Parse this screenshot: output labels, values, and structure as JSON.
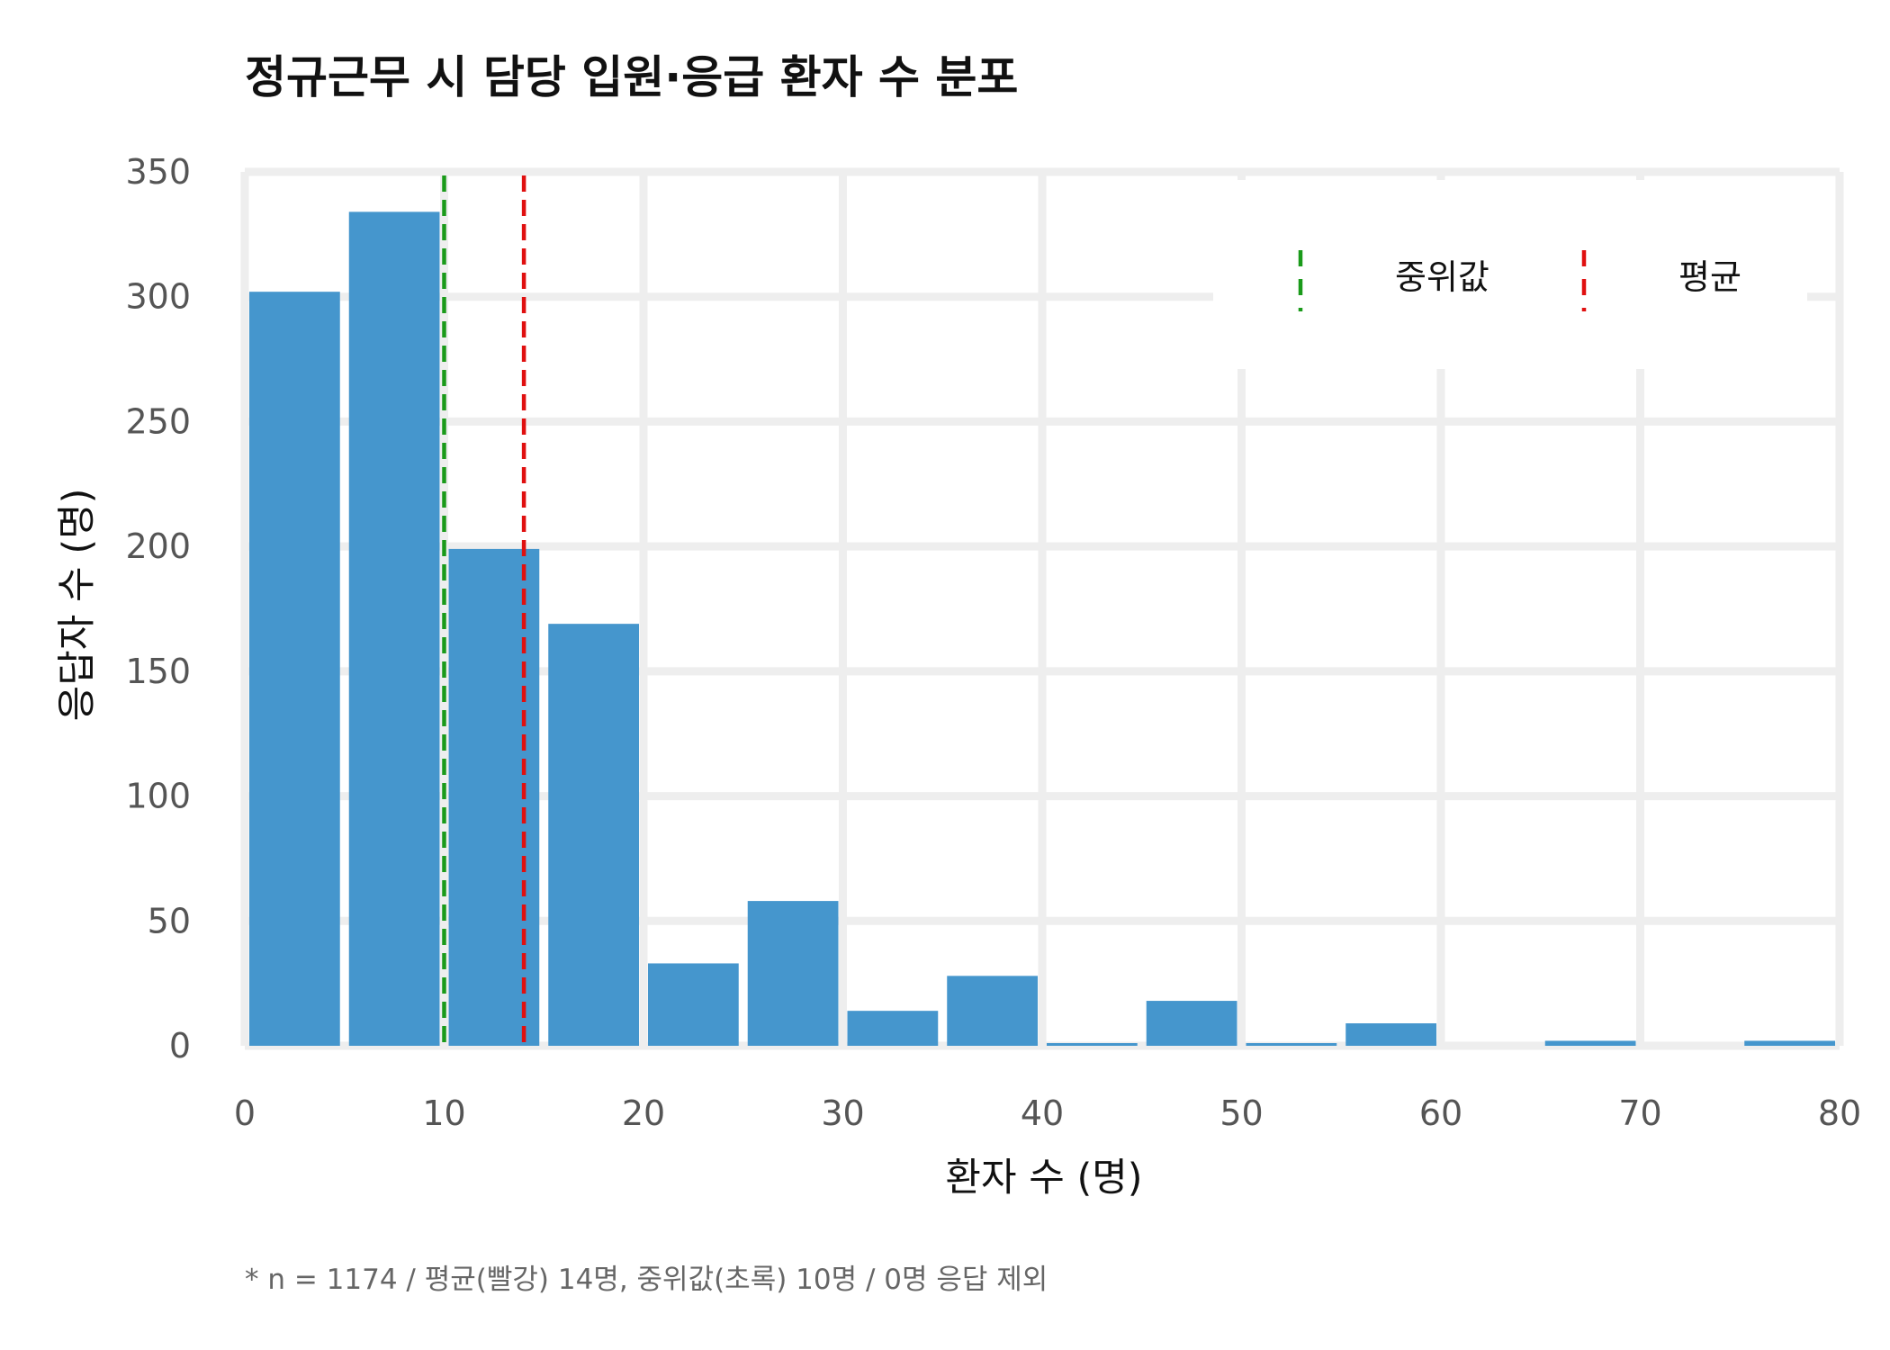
{
  "chart_data": {
    "type": "bar",
    "title": "정규근무 시 담당 입원·응급 환자 수 분포",
    "xlabel": "환자 수 (명)",
    "ylabel": "응답자 수 (명)",
    "bin_width": 5,
    "bins": [
      {
        "x0": 0,
        "x1": 5,
        "count": 302
      },
      {
        "x0": 5,
        "x1": 10,
        "count": 334
      },
      {
        "x0": 10,
        "x1": 15,
        "count": 199
      },
      {
        "x0": 15,
        "x1": 20,
        "count": 169
      },
      {
        "x0": 20,
        "x1": 25,
        "count": 33
      },
      {
        "x0": 25,
        "x1": 30,
        "count": 58
      },
      {
        "x0": 30,
        "x1": 35,
        "count": 14
      },
      {
        "x0": 35,
        "x1": 40,
        "count": 28
      },
      {
        "x0": 40,
        "x1": 45,
        "count": 1
      },
      {
        "x0": 45,
        "x1": 50,
        "count": 18
      },
      {
        "x0": 50,
        "x1": 55,
        "count": 1
      },
      {
        "x0": 55,
        "x1": 60,
        "count": 9
      },
      {
        "x0": 60,
        "x1": 65,
        "count": 0
      },
      {
        "x0": 65,
        "x1": 70,
        "count": 2
      },
      {
        "x0": 70,
        "x1": 75,
        "count": 0
      },
      {
        "x0": 75,
        "x1": 80,
        "count": 2
      }
    ],
    "xlim": [
      0,
      80
    ],
    "ylim": [
      0,
      350
    ],
    "xticks": [
      0,
      10,
      20,
      30,
      40,
      50,
      60,
      70,
      80
    ],
    "yticks": [
      0,
      50,
      100,
      150,
      200,
      250,
      300,
      350
    ],
    "grid": true,
    "bar_color": "#4596cd",
    "reference_lines": [
      {
        "name": "중위값",
        "value": 10,
        "color": "#1a9a1a",
        "style": "dashed"
      },
      {
        "name": "평균",
        "value": 14,
        "color": "#e01010",
        "style": "dashed"
      }
    ],
    "legend_position": "top-right",
    "footnote": "* n = 1174 / 평균(빨강) 14명, 중위값(초록) 10명 / 0명 응답 제외"
  }
}
